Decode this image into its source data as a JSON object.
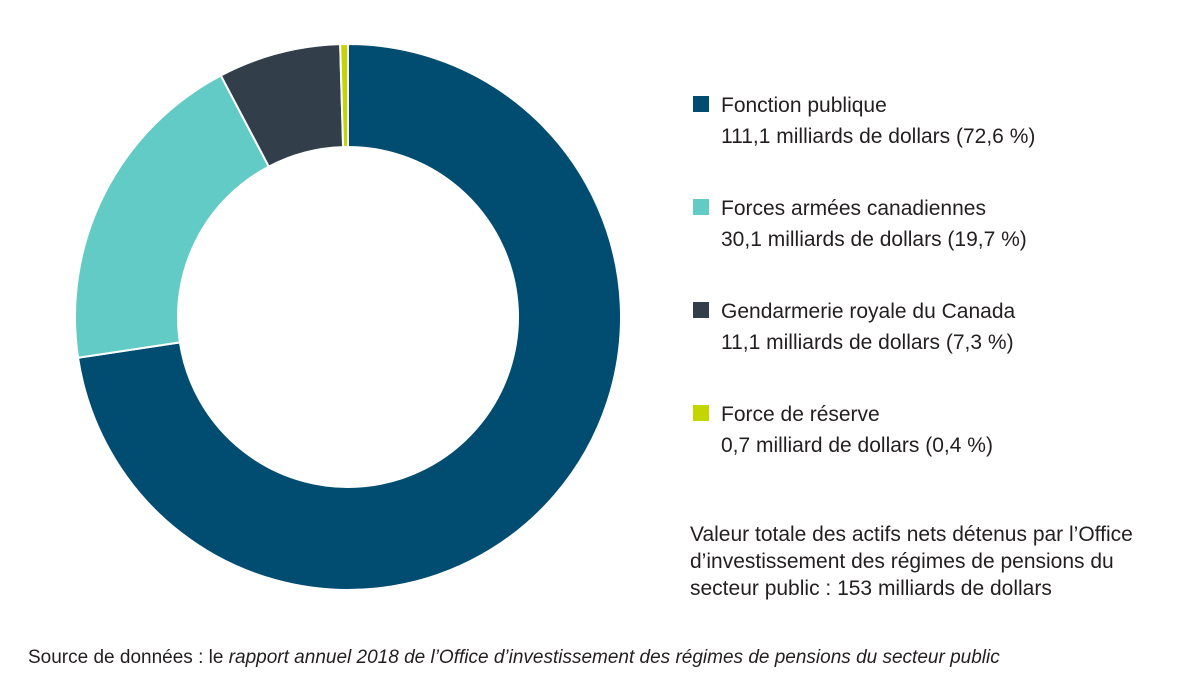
{
  "chart_data": {
    "type": "pie",
    "variant": "donut",
    "categories": [
      "Fonction publique",
      "Forces armées canadiennes",
      "Gendarmerie royale du Canada",
      "Force de réserve"
    ],
    "values": [
      111.1,
      30.1,
      11.1,
      0.7
    ],
    "value_labels": [
      "111,1 milliards de dollars (72,6 %)",
      "30,1 milliards de dollars (19,7 %)",
      "11,1 milliards de dollars (7,3 %)",
      "0,7 milliard de dollars (0,4 %)"
    ],
    "percentages": [
      72.6,
      19.7,
      7.3,
      0.4
    ],
    "colors": [
      "#004d71",
      "#63cbc6",
      "#323f4a",
      "#c4d600"
    ],
    "legend_position": "right"
  },
  "total_note": "Valeur totale des actifs nets détenus par l’Office d’investissement des régimes de pensions du secteur public : 153 milliards de dollars",
  "source": {
    "prefix": "Source de données : le ",
    "title": "rapport annuel 2018 de l’Office d’investissement des régimes de pensions du secteur public"
  }
}
